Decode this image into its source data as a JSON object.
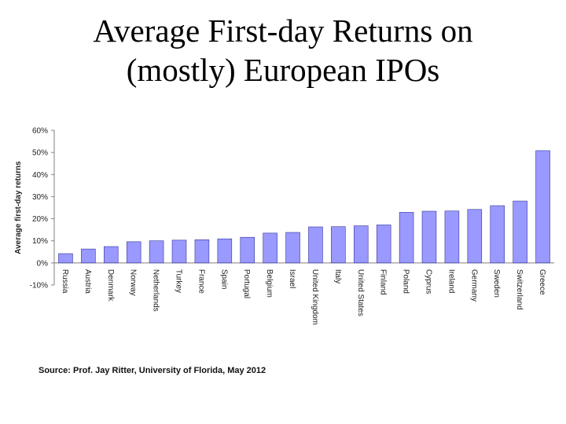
{
  "title_line1": "Average First-day Returns on",
  "title_line2": "(mostly) European IPOs",
  "source": "Source: Prof. Jay Ritter, University of Florida, May 2012",
  "colors": {
    "bar_fill": "#9999ff",
    "bar_stroke": "#333399",
    "axis": "#808080"
  },
  "chart_data": {
    "type": "bar",
    "title": "",
    "xlabel": "",
    "ylabel": "Average first-day returns",
    "ylim": [
      -10,
      60
    ],
    "yticks": [
      -10,
      0,
      10,
      20,
      30,
      40,
      50,
      60
    ],
    "ytick_format": "%",
    "grid": false,
    "legend": "none",
    "categories": [
      "Russia",
      "Austria",
      "Denmark",
      "Norway",
      "Netherlands",
      "Turkey",
      "France",
      "Spain",
      "Portugal",
      "Belgium",
      "Israel",
      "United Kingdom",
      "Italy",
      "United States",
      "Finland",
      "Poland",
      "Cyprus",
      "Ireland",
      "Germany",
      "Sweden",
      "Switzerland",
      "Greece"
    ],
    "values": [
      4.2,
      6.3,
      7.4,
      9.6,
      10.0,
      10.3,
      10.5,
      10.9,
      11.6,
      13.5,
      13.8,
      16.3,
      16.4,
      16.8,
      17.2,
      22.9,
      23.4,
      23.5,
      24.2,
      25.9,
      28.0,
      50.8
    ]
  }
}
